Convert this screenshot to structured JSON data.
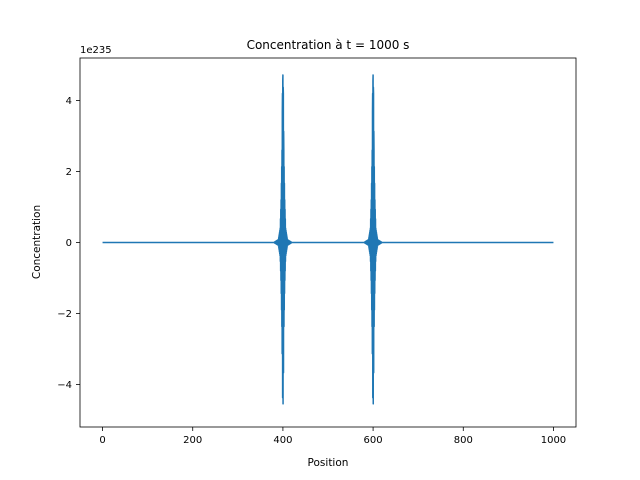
{
  "chart_data": {
    "type": "line",
    "title": "Concentration à t = 1000 s",
    "xlabel": "Position",
    "ylabel": "Concentration",
    "offset_label": "1e235",
    "xlim": [
      -50,
      1050
    ],
    "ylim": [
      -5.2,
      5.2
    ],
    "xticks": [
      0,
      200,
      400,
      600,
      800,
      1000
    ],
    "yticks": [
      -4,
      -2,
      0,
      2,
      4
    ],
    "grid": false,
    "series": [
      {
        "color": "#1f77b4",
        "x": [
          0,
          380,
          390,
          394,
          396,
          398,
          399,
          400,
          401,
          402,
          404,
          406,
          410,
          420,
          580,
          590,
          594,
          596,
          598,
          599,
          600,
          601,
          602,
          604,
          606,
          610,
          620,
          1000
        ],
        "y_envelope": [
          0,
          0,
          0.08,
          0.4,
          1.2,
          2.6,
          4.2,
          4.72,
          4.2,
          2.6,
          1.2,
          0.4,
          0.08,
          0,
          0,
          0.08,
          0.4,
          1.2,
          2.6,
          4.2,
          4.72,
          4.2,
          2.6,
          1.2,
          0.4,
          0.08,
          0,
          0
        ]
      }
    ]
  }
}
